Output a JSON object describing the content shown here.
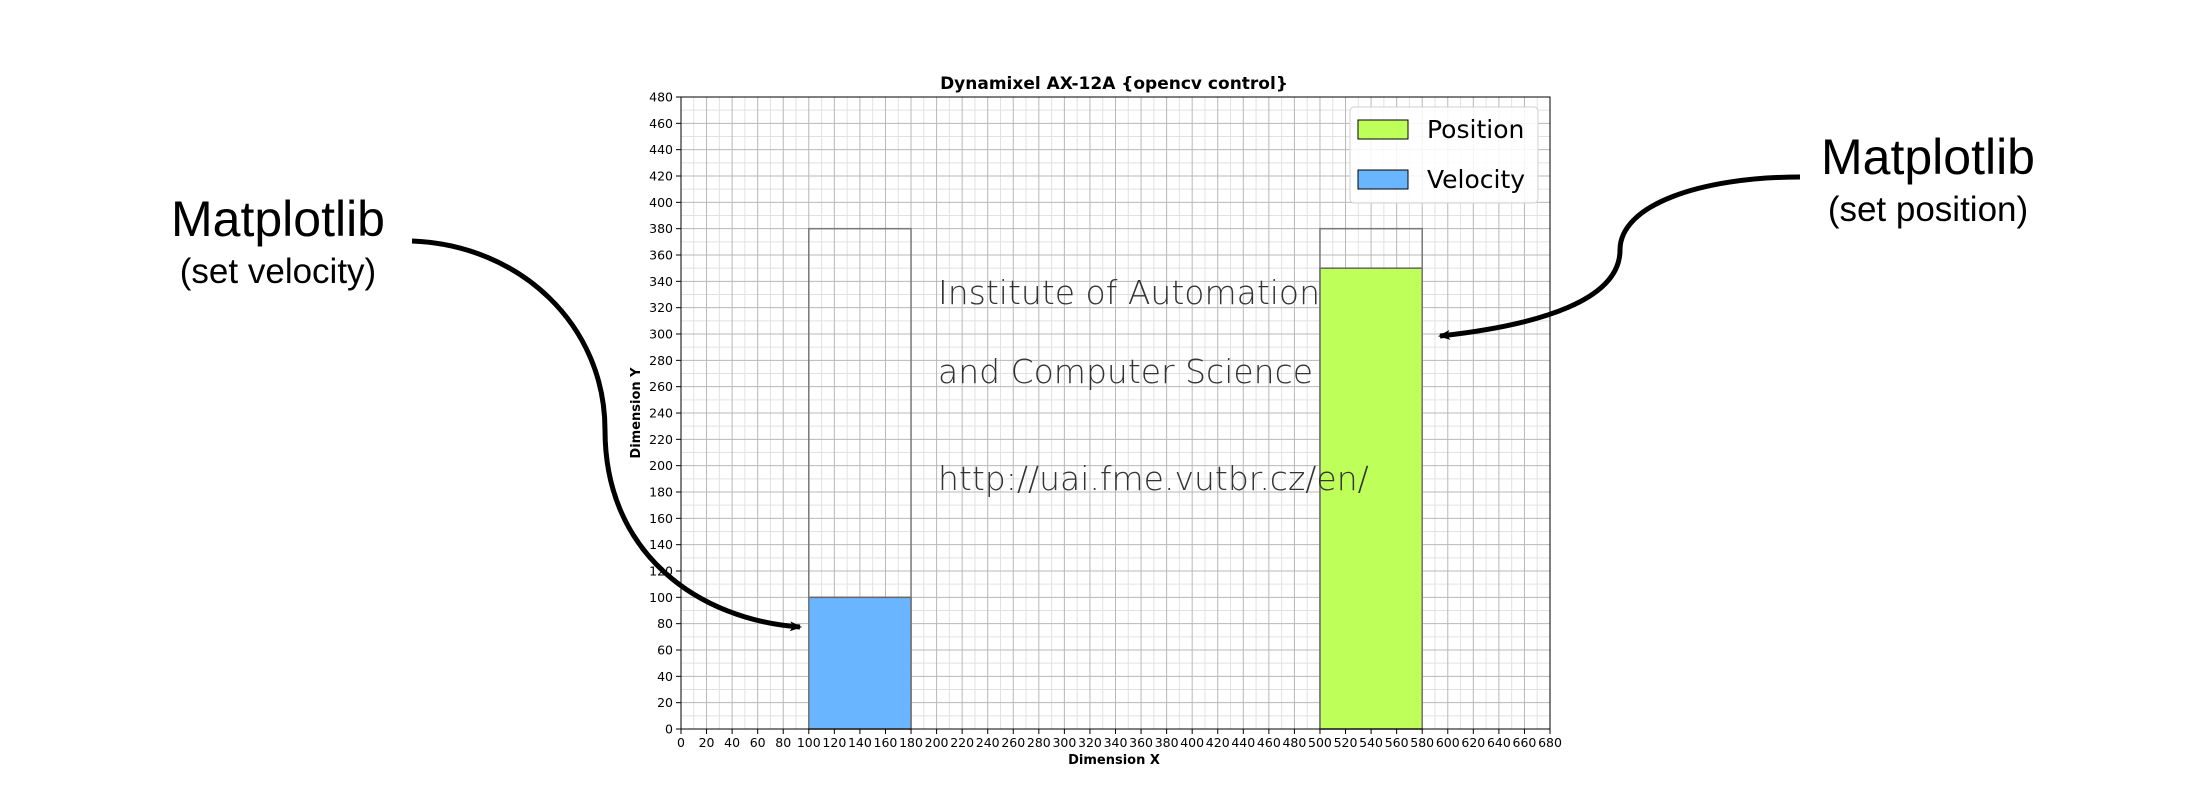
{
  "chart_data": {
    "type": "bar",
    "title": "Dynamixel AX-12A {opencv control}",
    "xlabel": "Dimension X",
    "ylabel": "Dimension Y",
    "xlim": [
      0,
      680
    ],
    "ylim": [
      0,
      480
    ],
    "xticks_step": 20,
    "yticks_step": 20,
    "grid": true,
    "minor_grid": true,
    "legend_placement": "top-right",
    "outline_bars": [
      {
        "x0": 100,
        "x1": 180,
        "height": 380
      },
      {
        "x0": 500,
        "x1": 580,
        "height": 380
      }
    ],
    "series": [
      {
        "name": "Position",
        "color": "#bfff5a",
        "x0": 500,
        "x1": 580,
        "value": 350
      },
      {
        "name": "Velocity",
        "color": "#6ab5ff",
        "x0": 100,
        "x1": 180,
        "value": 100
      }
    ],
    "inline_text": {
      "line1": "Institute of Automation",
      "line2": "and Computer Science",
      "url": "http://uai.fme.vutbr.cz/en/"
    }
  },
  "annotations": {
    "left": {
      "title": "Matplotlib",
      "subtitle": "(set velocity)"
    },
    "right": {
      "title": "Matplotlib",
      "subtitle": "(set position)"
    }
  }
}
